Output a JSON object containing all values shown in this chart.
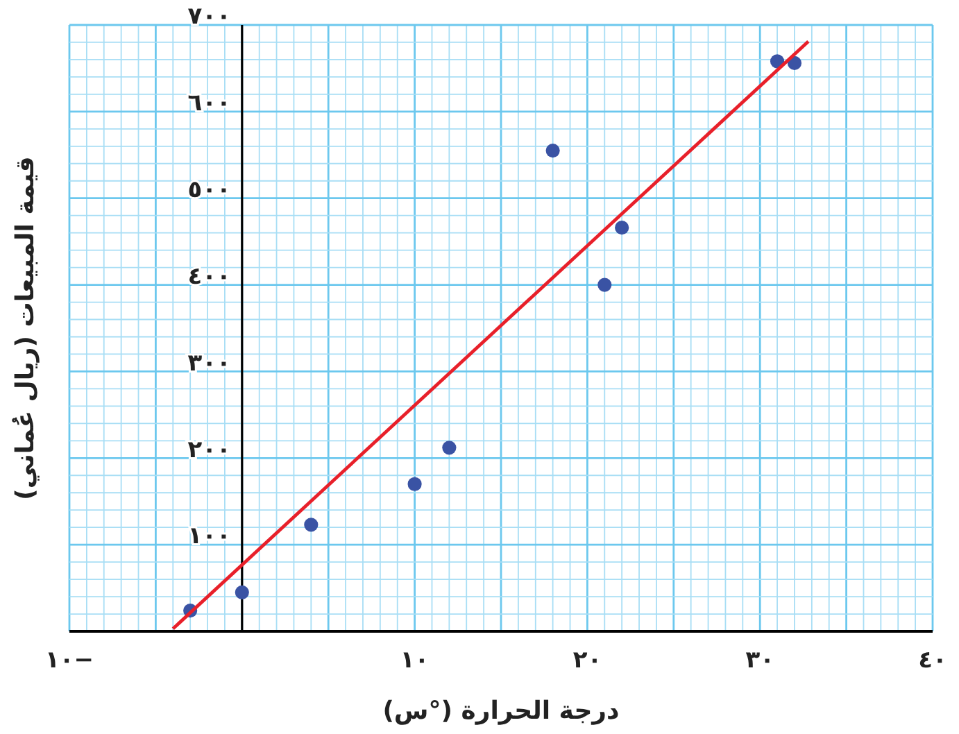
{
  "chart_data": {
    "type": "scatter",
    "xlabel": "درجة الحرارة (°س)",
    "ylabel": "قيمة المبيعات (ريال عُماني)",
    "xlim": [
      -10,
      40
    ],
    "ylim": [
      0,
      700
    ],
    "xticks": [
      {
        "value": -10,
        "label": "١٠−"
      },
      {
        "value": -9,
        "label": null
      },
      {
        "value": -8,
        "label": null
      },
      {
        "value": -7,
        "label": null
      },
      {
        "value": -6,
        "label": null
      },
      {
        "value": -5,
        "label": null
      },
      {
        "value": -4,
        "label": null
      },
      {
        "value": -3,
        "label": null
      },
      {
        "value": -2,
        "label": null
      },
      {
        "value": -1,
        "label": null
      },
      {
        "value": 0,
        "label": null
      },
      {
        "value": 1,
        "label": null
      },
      {
        "value": 2,
        "label": null
      },
      {
        "value": 3,
        "label": null
      },
      {
        "value": 4,
        "label": null
      },
      {
        "value": 5,
        "label": null
      },
      {
        "value": 6,
        "label": null
      },
      {
        "value": 7,
        "label": null
      },
      {
        "value": 8,
        "label": null
      },
      {
        "value": 9,
        "label": null
      },
      {
        "value": 10,
        "label": "١٠"
      },
      {
        "value": 11,
        "label": null
      },
      {
        "value": 12,
        "label": null
      },
      {
        "value": 13,
        "label": null
      },
      {
        "value": 14,
        "label": null
      },
      {
        "value": 15,
        "label": null
      },
      {
        "value": 16,
        "label": null
      },
      {
        "value": 17,
        "label": null
      },
      {
        "value": 18,
        "label": null
      },
      {
        "value": 19,
        "label": null
      },
      {
        "value": 20,
        "label": "٢٠"
      },
      {
        "value": 21,
        "label": null
      },
      {
        "value": 22,
        "label": null
      },
      {
        "value": 23,
        "label": null
      },
      {
        "value": 24,
        "label": null
      },
      {
        "value": 25,
        "label": null
      },
      {
        "value": 26,
        "label": null
      },
      {
        "value": 27,
        "label": null
      },
      {
        "value": 28,
        "label": null
      },
      {
        "value": 29,
        "label": null
      },
      {
        "value": 30,
        "label": "٣٠"
      },
      {
        "value": 31,
        "label": null
      },
      {
        "value": 32,
        "label": null
      },
      {
        "value": 33,
        "label": null
      },
      {
        "value": 34,
        "label": null
      },
      {
        "value": 35,
        "label": null
      },
      {
        "value": 36,
        "label": null
      },
      {
        "value": 37,
        "label": null
      },
      {
        "value": 38,
        "label": null
      },
      {
        "value": 39,
        "label": null
      },
      {
        "value": 40,
        "label": "٤٠"
      }
    ],
    "yticks": [
      {
        "value": 0,
        "label": null
      },
      {
        "value": 20,
        "label": null
      },
      {
        "value": 40,
        "label": null
      },
      {
        "value": 60,
        "label": null
      },
      {
        "value": 80,
        "label": null
      },
      {
        "value": 100,
        "label": "١٠٠"
      },
      {
        "value": 120,
        "label": null
      },
      {
        "value": 140,
        "label": null
      },
      {
        "value": 160,
        "label": null
      },
      {
        "value": 180,
        "label": null
      },
      {
        "value": 200,
        "label": "٢٠٠"
      },
      {
        "value": 220,
        "label": null
      },
      {
        "value": 240,
        "label": null
      },
      {
        "value": 260,
        "label": null
      },
      {
        "value": 280,
        "label": null
      },
      {
        "value": 300,
        "label": "٣٠٠"
      },
      {
        "value": 320,
        "label": null
      },
      {
        "value": 340,
        "label": null
      },
      {
        "value": 360,
        "label": null
      },
      {
        "value": 380,
        "label": null
      },
      {
        "value": 400,
        "label": "٤٠٠"
      },
      {
        "value": 420,
        "label": null
      },
      {
        "value": 440,
        "label": null
      },
      {
        "value": 460,
        "label": null
      },
      {
        "value": 480,
        "label": null
      },
      {
        "value": 500,
        "label": "٥٠٠"
      },
      {
        "value": 520,
        "label": null
      },
      {
        "value": 540,
        "label": null
      },
      {
        "value": 560,
        "label": null
      },
      {
        "value": 580,
        "label": null
      },
      {
        "value": 600,
        "label": "٦٠٠"
      },
      {
        "value": 620,
        "label": null
      },
      {
        "value": 640,
        "label": null
      },
      {
        "value": 660,
        "label": null
      },
      {
        "value": 680,
        "label": null
      },
      {
        "value": 700,
        "label": "٧٠٠"
      }
    ],
    "grid": true,
    "marker": "circle",
    "series": [
      {
        "color": "#3a53a4",
        "x": [
          -3,
          0,
          4,
          10,
          12,
          18,
          21,
          22,
          31,
          32
        ],
        "values": [
          24,
          45,
          123,
          170,
          212,
          555,
          400,
          466,
          658,
          656
        ]
      },
      {
        "type": "line",
        "color": "#e8202a",
        "marker": "none",
        "x": [
          -4,
          32.8
        ],
        "values": [
          3,
          681
        ]
      }
    ]
  }
}
